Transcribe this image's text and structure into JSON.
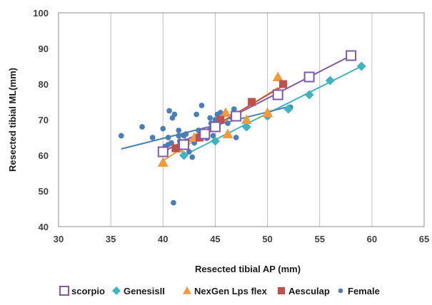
{
  "chart_data": {
    "type": "scatter",
    "title": "",
    "xlabel": "Resected tibial AP (mm)",
    "ylabel": "Resected tibial ML(mm)",
    "xlim": [
      30,
      65
    ],
    "ylim": [
      40,
      100
    ],
    "x_ticks": [
      "30",
      "35",
      "40",
      "45",
      "50",
      "55",
      "60",
      "65"
    ],
    "y_ticks": [
      "40",
      "50",
      "60",
      "70",
      "80",
      "90",
      "100"
    ],
    "grid": "vertical",
    "legend_position": "bottom",
    "series": [
      {
        "name": "scorpio",
        "color": "#7e5ba6",
        "marker": "open-square",
        "points": [
          [
            40,
            61
          ],
          [
            42,
            63
          ],
          [
            44,
            66
          ],
          [
            45,
            68
          ],
          [
            47,
            71
          ],
          [
            51,
            77
          ],
          [
            54,
            82
          ],
          [
            58,
            88
          ]
        ],
        "trendline": [
          [
            40,
            61
          ],
          [
            58,
            88
          ]
        ]
      },
      {
        "name": "GenesisII",
        "color": "#3fb4c0",
        "marker": "diamond",
        "points": [
          [
            42,
            60
          ],
          [
            45,
            64
          ],
          [
            48,
            68
          ],
          [
            50,
            71
          ],
          [
            52,
            73
          ],
          [
            54,
            77
          ],
          [
            56,
            81
          ],
          [
            59,
            85
          ]
        ],
        "trendline": [
          [
            42,
            60
          ],
          [
            59,
            85
          ]
        ]
      },
      {
        "name": "NexGen Lps flex",
        "color": "#f39a3c",
        "marker": "triangle",
        "points": [
          [
            40,
            58
          ],
          [
            41.5,
            62
          ],
          [
            43,
            65
          ],
          [
            46,
            72
          ],
          [
            46.2,
            66
          ],
          [
            48,
            70
          ],
          [
            50,
            72
          ],
          [
            51,
            82
          ]
        ],
        "trendline": [
          [
            40,
            58.5
          ],
          [
            51,
            79
          ]
        ]
      },
      {
        "name": "Aesculap",
        "color": "#c0504d",
        "marker": "square",
        "points": [
          [
            41.2,
            62
          ],
          [
            43.5,
            65
          ],
          [
            45.5,
            70
          ],
          [
            48.5,
            75
          ],
          [
            51.5,
            80
          ]
        ],
        "trendline": [
          [
            41,
            61.5
          ],
          [
            51.5,
            79.5
          ]
        ]
      },
      {
        "name": "Female",
        "color": "#4a7ebb",
        "marker": "circle",
        "points": [
          [
            36,
            65.5
          ],
          [
            38,
            68
          ],
          [
            39,
            65
          ],
          [
            40,
            67.5
          ],
          [
            40.5,
            65
          ],
          [
            40.2,
            62.5
          ],
          [
            40.5,
            63
          ],
          [
            40.8,
            63.5
          ],
          [
            40.6,
            72.5
          ],
          [
            40.9,
            70.5
          ],
          [
            41.1,
            71.5
          ],
          [
            41.5,
            67
          ],
          [
            41.5,
            65.5
          ],
          [
            41.6,
            64
          ],
          [
            41,
            46.7
          ],
          [
            42,
            65.5
          ],
          [
            42.2,
            66
          ],
          [
            42.2,
            64
          ],
          [
            42.5,
            61
          ],
          [
            42.8,
            59.5
          ],
          [
            43,
            63.5
          ],
          [
            43.2,
            71.5
          ],
          [
            43.4,
            67
          ],
          [
            43.7,
            74
          ],
          [
            43.8,
            65.5
          ],
          [
            44.2,
            64.8
          ],
          [
            44.5,
            70.5
          ],
          [
            44.6,
            69
          ],
          [
            44.8,
            68.5
          ],
          [
            44.8,
            65.5
          ],
          [
            45,
            70
          ],
          [
            45.2,
            71.5
          ],
          [
            45.4,
            69.5
          ],
          [
            45.5,
            72
          ],
          [
            46,
            71.8
          ],
          [
            46.2,
            69
          ],
          [
            46.5,
            70.8
          ],
          [
            46.8,
            73
          ],
          [
            47,
            65
          ],
          [
            47.2,
            71
          ],
          [
            52.2,
            73.5
          ]
        ],
        "trendline": [
          [
            36,
            61.8
          ],
          [
            52.2,
            73.8
          ]
        ]
      }
    ]
  }
}
